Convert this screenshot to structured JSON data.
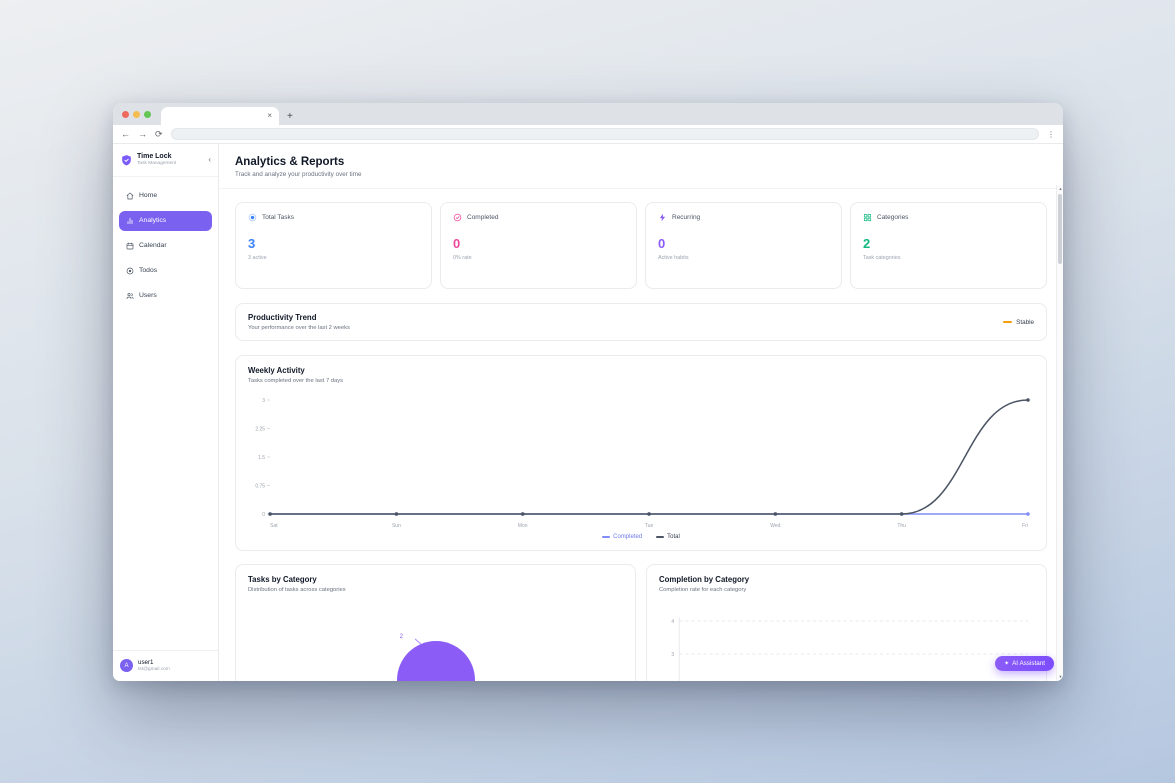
{
  "icons": {
    "back": "←",
    "forward": "→",
    "reload": "⟳",
    "menu": "⋮",
    "tab_close": "×",
    "new_tab": "+",
    "collapse": "‹",
    "sparkle": "✦",
    "scroll_up": "▲",
    "scroll_down": "▼"
  },
  "browser": {
    "tab_title": "",
    "address_value": "",
    "address_placeholder": ""
  },
  "sidebar": {
    "app_name": "Time Lock",
    "app_tagline": "Task Management",
    "items": [
      {
        "label": "Home",
        "icon": "home-icon",
        "active": false
      },
      {
        "label": "Analytics",
        "icon": "bar-chart-icon",
        "active": true
      },
      {
        "label": "Calendar",
        "icon": "calendar-icon",
        "active": false
      },
      {
        "label": "Todos",
        "icon": "target-icon",
        "active": false
      },
      {
        "label": "Users",
        "icon": "users-icon",
        "active": false
      }
    ],
    "user": {
      "initial": "A",
      "name": "user1",
      "email": "tst@gmail.com"
    }
  },
  "header": {
    "title": "Analytics & Reports",
    "subtitle": "Track and analyze your productivity over time"
  },
  "stats": [
    {
      "label": "Total Tasks",
      "value": "3",
      "sub": "3 active",
      "color": "#3b82f6",
      "icon": "circle-dot-icon"
    },
    {
      "label": "Completed",
      "value": "0",
      "sub": "0% rate",
      "color": "#ec4899",
      "icon": "circle-check-icon"
    },
    {
      "label": "Recurring",
      "value": "0",
      "sub": "Active habits",
      "color": "#8b5cf6",
      "icon": "bolt-icon"
    },
    {
      "label": "Categories",
      "value": "2",
      "sub": "Task categories",
      "color": "#10b981",
      "icon": "grid-icon"
    }
  ],
  "productivity": {
    "title": "Productivity Trend",
    "subtitle": "Your performance over the last 2 weeks",
    "status": "Stable",
    "status_color": "#f59e0b"
  },
  "ai_button": {
    "label": "AI Assistant"
  },
  "chart_data": [
    {
      "type": "line",
      "title": "Weekly Activity",
      "subtitle": "Tasks completed over the last 7 days",
      "categories": [
        "Sat",
        "Sun",
        "Mon",
        "Tue",
        "Wed",
        "Thu",
        "Fri"
      ],
      "series": [
        {
          "name": "Completed",
          "color": "#818cf8",
          "text_color": "#6d7bf0",
          "values": [
            0,
            0,
            0,
            0,
            0,
            0,
            0
          ]
        },
        {
          "name": "Total",
          "color": "#4b5563",
          "text_color": "#374151",
          "values": [
            0,
            0,
            0,
            0,
            0,
            0,
            3
          ]
        }
      ],
      "ylim": [
        0,
        3
      ],
      "yticks": [
        0,
        0.75,
        1.5,
        2.25,
        3
      ],
      "grid": false,
      "legend_position": "bottom"
    },
    {
      "type": "pie",
      "title": "Tasks by Category",
      "subtitle": "Distribution of tasks across categories",
      "slices": [
        {
          "label": "2",
          "value": 2,
          "color": "#8b5cf6"
        }
      ]
    },
    {
      "type": "bar",
      "title": "Completion by Category",
      "subtitle": "Completion rate for each category",
      "yticks": [
        4,
        3
      ],
      "grid": true
    }
  ]
}
